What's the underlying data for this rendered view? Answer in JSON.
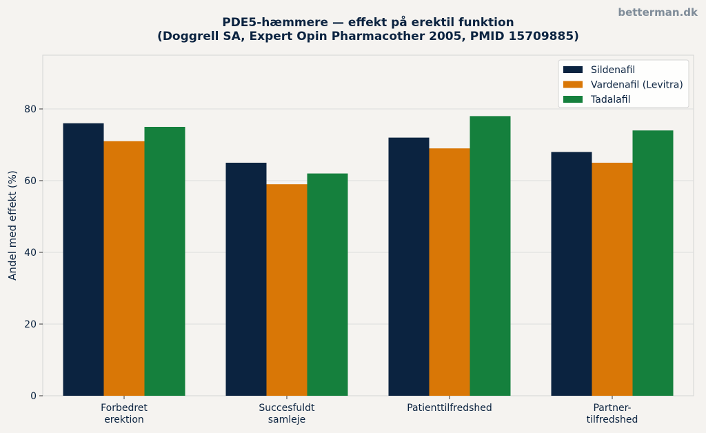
{
  "watermark": "betterman.dk",
  "chart_data": {
    "type": "bar",
    "title_lines": [
      "PDE5-hæmmere — effekt på erektil funktion",
      "(Doggrell SA, Expert Opin Pharmacother 2005, PMID 15709885)"
    ],
    "xlabel": "",
    "ylabel": "Andel med effekt (%)",
    "categories": [
      [
        "Forbedret",
        "erektion"
      ],
      [
        "Succesfuldt",
        "samleje"
      ],
      [
        "Patienttilfredshed"
      ],
      [
        "Partner-",
        "tilfredshed"
      ]
    ],
    "series": [
      {
        "name": "Sildenafil",
        "color": "#0b2340",
        "values": [
          76,
          65,
          72,
          68
        ]
      },
      {
        "name": "Vardenafil (Levitra)",
        "color": "#d97706",
        "values": [
          71,
          59,
          69,
          65
        ]
      },
      {
        "name": "Tadalafil",
        "color": "#15803d",
        "values": [
          75,
          62,
          78,
          74
        ]
      }
    ],
    "ylim": [
      0,
      95
    ],
    "yticks": [
      0,
      20,
      40,
      60,
      80
    ],
    "grid": true,
    "legend_position": "top-right"
  }
}
